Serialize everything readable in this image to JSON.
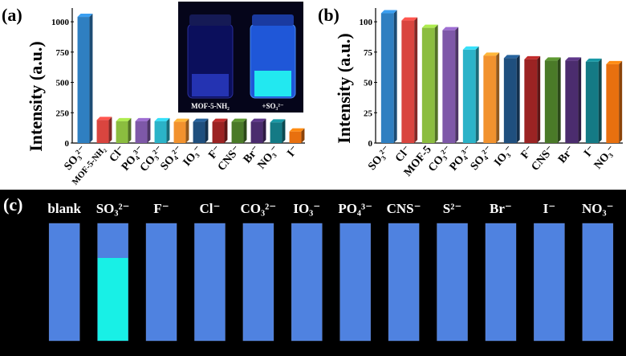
{
  "chart_data": [
    {
      "panel": "(a)",
      "type": "bar",
      "ylabel": "Intensity (a.u.)",
      "ylim": [
        0,
        1100
      ],
      "yticks": [
        0,
        250,
        500,
        750,
        1000
      ],
      "categories": [
        "SO₃²⁻",
        "MOF-5-NH₂",
        "Cl⁻",
        "PO₄³⁻",
        "CO₃²⁻",
        "SO₄²⁻",
        "IO₃⁻",
        "F⁻",
        "CNS⁻",
        "Br⁻",
        "NO₃⁻",
        "I⁻"
      ],
      "values": [
        1040,
        190,
        180,
        180,
        180,
        175,
        175,
        175,
        175,
        175,
        170,
        95
      ],
      "colors": [
        "#2f7fc1",
        "#d9453f",
        "#8bbd3f",
        "#7e58a8",
        "#2bb3c8",
        "#f2922e",
        "#1f4f7e",
        "#9b2323",
        "#4a7a28",
        "#4b2c6e",
        "#147a85",
        "#e8700f"
      ],
      "grid": false,
      "inset_labels": [
        "MOF-5-NH₂",
        "+SO₃²⁻"
      ]
    },
    {
      "panel": "(b)",
      "type": "bar",
      "ylabel": "Intensity (a.u.)",
      "ylim": [
        0,
        110
      ],
      "yticks": [
        0,
        25,
        50,
        75,
        100
      ],
      "categories": [
        "SO₃²⁻",
        "Cl⁻",
        "MOF-5",
        "CO₃²⁻",
        "PO₄³⁻",
        "SO₄²⁻",
        "IO₃⁻",
        "F⁻",
        "CNS⁻",
        "Br⁻",
        "I⁻",
        "NO₃⁻"
      ],
      "values": [
        107,
        101,
        95,
        93,
        77,
        72,
        70,
        69,
        68,
        68,
        67,
        65
      ],
      "colors": [
        "#2f7fc1",
        "#d9453f",
        "#8bbd3f",
        "#7e58a8",
        "#2bb3c8",
        "#f2922e",
        "#1f4f7e",
        "#9b2323",
        "#4a7a28",
        "#4b2c6e",
        "#147a85",
        "#e8700f"
      ],
      "grid": false
    }
  ],
  "panel_c": {
    "label": "(c)",
    "strips": [
      "blank",
      "SO₃²⁻",
      "F⁻",
      "Cl⁻",
      "CO₃²⁻",
      "IO₃⁻",
      "PO₄³⁻",
      "CNS⁻",
      "S²⁻",
      "Br⁻",
      "I⁻",
      "NO₃⁻"
    ],
    "strip_color": "#4f82e0",
    "highlight_color": "#18f0e6"
  }
}
